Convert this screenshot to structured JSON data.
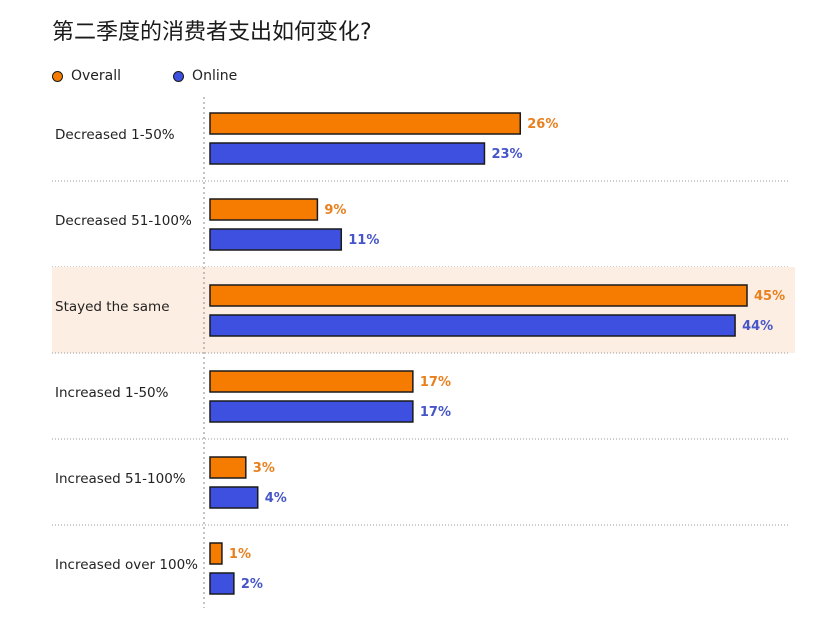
{
  "title": "第二季度的消费者支出如何变化?",
  "legend": {
    "overall_label": "Overall",
    "online_label": "Online"
  },
  "colors": {
    "overall": "#F57C00",
    "online": "#3D50E0",
    "overall_text": "#E8801E",
    "online_text": "#4655C8",
    "highlight_bg": "#FDEEE3",
    "outline": "#1a1a1a"
  },
  "chart_data": {
    "type": "bar",
    "orientation": "horizontal",
    "title": "第二季度的消费者支出如何变化?",
    "categories": [
      "Decreased 1-50%",
      "Decreased 51-100%",
      "Stayed the same",
      "Increased 1-50%",
      "Increased 51-100%",
      "Increased over 100%"
    ],
    "series": [
      {
        "name": "Overall",
        "values": [
          26,
          9,
          45,
          17,
          3,
          1
        ],
        "labels": [
          "26%",
          "9%",
          "45%",
          "17%",
          "3%",
          "1%"
        ]
      },
      {
        "name": "Online",
        "values": [
          23,
          11,
          44,
          17,
          4,
          2
        ],
        "labels": [
          "23%",
          "11%",
          "44%",
          "17%",
          "4%",
          "2%"
        ]
      }
    ],
    "highlighted_category": "Stayed the same",
    "xlim": [
      0,
      45
    ],
    "legend_position": "top-left",
    "grid": false
  }
}
